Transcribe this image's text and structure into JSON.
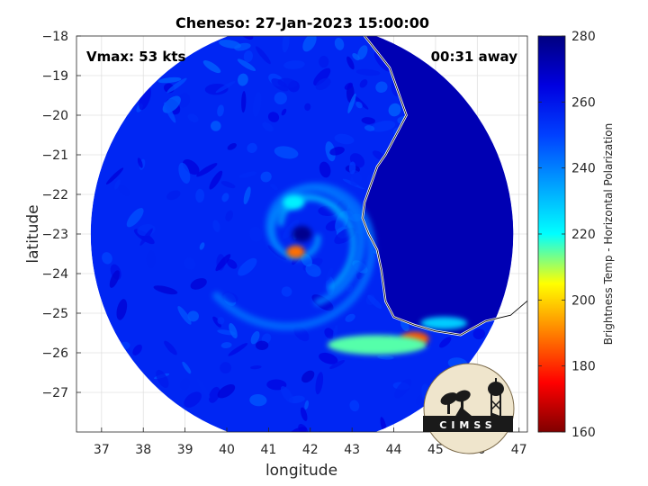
{
  "chart_data": {
    "type": "heatmap",
    "title": "Cheneso: 27-Jan-2023 15:00:00",
    "xlabel": "longitude",
    "ylabel": "latitude",
    "xlim": [
      36.4,
      47.2
    ],
    "ylim": [
      -28.0,
      -18.0
    ],
    "x_ticks": [
      37,
      38,
      39,
      40,
      41,
      42,
      43,
      44,
      45,
      46,
      47
    ],
    "y_ticks": [
      -18,
      -19,
      -20,
      -21,
      -22,
      -23,
      -24,
      -25,
      -26,
      -27
    ],
    "grid": true,
    "annotations": {
      "vmax": "Vmax: 53 kts",
      "away": "00:31 away"
    },
    "colorbar": {
      "label": "Brightness Temp - Horizontal Polarization",
      "min": 160,
      "max": 280,
      "ticks": [
        160,
        180,
        200,
        220,
        240,
        260,
        280
      ],
      "colormap": "jet"
    },
    "swath": {
      "center_lon": 41.8,
      "center_lat": -23.0,
      "radius_deg": 5.5
    },
    "land_region_temp": 272,
    "ocean_background_temp": 256,
    "features": [
      {
        "name": "eye",
        "lon": 41.8,
        "lat": -23.0,
        "temp": 278
      },
      {
        "name": "eyewall-warm-spot",
        "lon": 41.65,
        "lat": -23.45,
        "temp": 188
      },
      {
        "name": "eyewall-north",
        "lon": 41.6,
        "lat": -22.2,
        "temp": 222
      },
      {
        "name": "south-band-core",
        "lon": 44.5,
        "lat": -25.65,
        "temp": 185
      },
      {
        "name": "south-band",
        "lon": 43.6,
        "lat": -25.8,
        "temp": 215
      },
      {
        "name": "southeast-band",
        "lon": 45.2,
        "lat": -25.25,
        "temp": 228
      }
    ],
    "logo_text": "CIMSS"
  }
}
